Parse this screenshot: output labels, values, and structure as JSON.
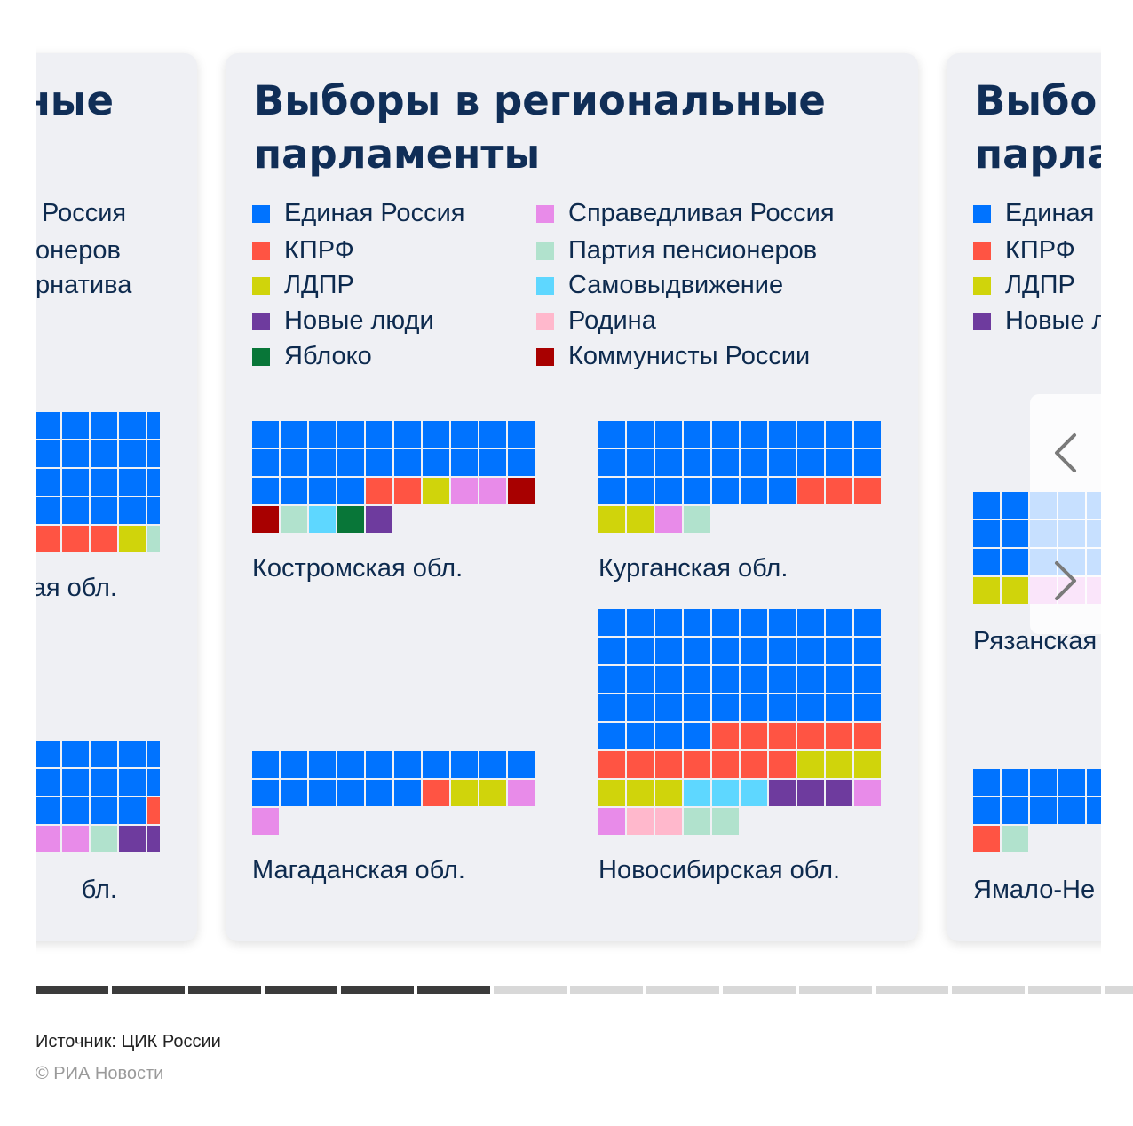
{
  "colors": {
    "er": "#0073ff",
    "kprf": "#ff5443",
    "ldpr": "#d0d40b",
    "nl": "#6e3b9e",
    "yabloko": "#087638",
    "sr": "#e88be9",
    "pensioners": "#b1e2cd",
    "self": "#5ed7ff",
    "rodina": "#ffb8cc",
    "kr": "#a80000",
    "progress_active": "#3b3b3b",
    "progress_inactive": "#d8d8d8"
  },
  "card": {
    "title": "Выборы в региональные парламенты",
    "title_left_fragment": "ные",
    "title_right_fragment": "Выбо",
    "title_right_fragment2": "парла"
  },
  "legend": [
    {
      "key": "er",
      "label": "Единая Россия"
    },
    {
      "key": "kprf",
      "label": "КПРФ"
    },
    {
      "key": "ldpr",
      "label": "ЛДПР"
    },
    {
      "key": "nl",
      "label": "Новые люди"
    },
    {
      "key": "yabloko",
      "label": "Яблоко"
    },
    {
      "key": "sr",
      "label": "Справедливая Россия"
    },
    {
      "key": "pensioners",
      "label": "Партия пенсионеров"
    },
    {
      "key": "self",
      "label": "Самовыдвижение"
    },
    {
      "key": "rodina",
      "label": "Родина"
    },
    {
      "key": "kr",
      "label": "Коммунисты России"
    }
  ],
  "legend_left_fragments": [
    "Россия",
    "онеров",
    "рнатива"
  ],
  "legend_right_fragments": [
    "Единая",
    "КПРФ",
    "ЛДПР",
    "Новые л"
  ],
  "legend_right_keys": [
    "er",
    "kprf",
    "ldpr",
    "nl"
  ],
  "chart_data": [
    {
      "type": "waffle",
      "region": "Костромская обл.",
      "seats": [
        {
          "party": "er",
          "count": 24
        },
        {
          "party": "kprf",
          "count": 2
        },
        {
          "party": "ldpr",
          "count": 1
        },
        {
          "party": "sr",
          "count": 2
        },
        {
          "party": "kr",
          "count": 2
        },
        {
          "party": "pensioners",
          "count": 1
        },
        {
          "party": "self",
          "count": 1
        },
        {
          "party": "yabloko",
          "count": 1
        },
        {
          "party": "nl",
          "count": 1
        }
      ]
    },
    {
      "type": "waffle",
      "region": "Курганская обл.",
      "seats": [
        {
          "party": "er",
          "count": 27
        },
        {
          "party": "kprf",
          "count": 3
        },
        {
          "party": "ldpr",
          "count": 2
        },
        {
          "party": "sr",
          "count": 1
        },
        {
          "party": "pensioners",
          "count": 1
        }
      ]
    },
    {
      "type": "waffle",
      "region": "Магаданская обл.",
      "seats": [
        {
          "party": "er",
          "count": 16
        },
        {
          "party": "kprf",
          "count": 1
        },
        {
          "party": "ldpr",
          "count": 2
        },
        {
          "party": "sr",
          "count": 2
        }
      ]
    },
    {
      "type": "waffle",
      "region": "Новосибирская обл.",
      "seats": [
        {
          "party": "er",
          "count": 44
        },
        {
          "party": "kprf",
          "count": 13
        },
        {
          "party": "ldpr",
          "count": 6
        },
        {
          "party": "self",
          "count": 3
        },
        {
          "party": "nl",
          "count": 3
        },
        {
          "party": "sr",
          "count": 2
        },
        {
          "party": "rodina",
          "count": 2
        },
        {
          "party": "pensioners",
          "count": 2
        }
      ]
    }
  ],
  "partial_regions": {
    "left_top_name": "ая обл.",
    "left_bottom_name": "бл.",
    "right_top_name": "Рязанская",
    "right_bottom_name": "Ямало-Не"
  },
  "progress": {
    "total": 15,
    "active": 6
  },
  "footer": {
    "source": "Источник: ЦИК России",
    "copyright": "© РИА Новости"
  }
}
